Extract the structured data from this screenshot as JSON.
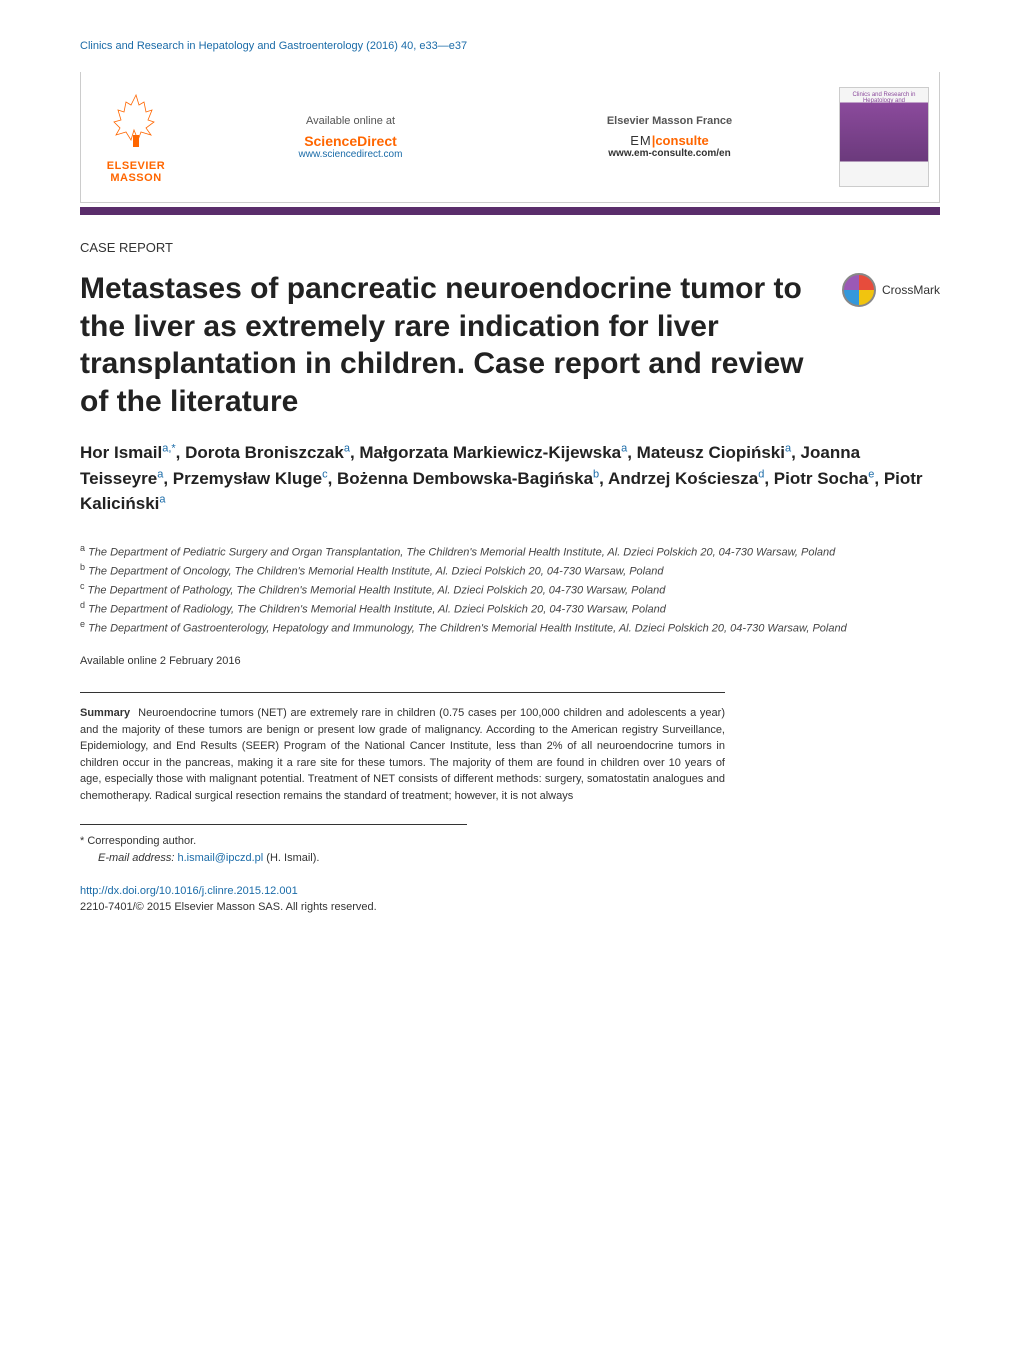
{
  "journal_header": "Clinics and Research in Hepatology and Gastroenterology (2016) 40, e33—e37",
  "banner": {
    "elsevier_name": "ELSEVIER",
    "elsevier_sub": "MASSON",
    "col1_label": "Available online at",
    "col1_brand": "ScienceDirect",
    "col1_url": "www.sciencedirect.com",
    "col2_label": "Elsevier Masson France",
    "col2_em_prefix": "EM",
    "col2_em_brand": "consulte",
    "col2_url": "www.em-consulte.com/en",
    "thumb_title": "Clinics and Research in Hepatology and Gastroenterology"
  },
  "section_label": "CASE REPORT",
  "title": "Metastases of pancreatic neuroendocrine tumor to the liver as extremely rare indication for liver transplantation in children. Case report and review of the literature",
  "crossmark": "CrossMark",
  "authors_html": "Hor Ismail<sup class='sup'>a,*</sup>, Dorota Broniszczak<sup class='sup'>a</sup>, Małgorzata Markiewicz-Kijewska<sup class='sup'>a</sup>, Mateusz Ciopiński<sup class='sup'>a</sup>, Joanna Teisseyre<sup class='sup'>a</sup>, Przemysław Kluge<sup class='sup'>c</sup>, Bożenna Dembowska-Bagińska<sup class='sup'>b</sup>, Andrzej Kościesza<sup class='sup'>d</sup>, Piotr Socha<sup class='sup'>e</sup>, Piotr Kaliciński<sup class='sup'>a</sup>",
  "affiliations": [
    {
      "key": "a",
      "text": "The Department of Pediatric Surgery and Organ Transplantation, The Children's Memorial Health Institute, Al. Dzieci Polskich 20, 04-730 Warsaw, Poland"
    },
    {
      "key": "b",
      "text": "The Department of Oncology, The Children's Memorial Health Institute, Al. Dzieci Polskich 20, 04-730 Warsaw, Poland"
    },
    {
      "key": "c",
      "text": "The Department of Pathology, The Children's Memorial Health Institute, Al. Dzieci Polskich 20, 04-730 Warsaw, Poland"
    },
    {
      "key": "d",
      "text": "The Department of Radiology, The Children's Memorial Health Institute, Al. Dzieci Polskich 20, 04-730 Warsaw, Poland"
    },
    {
      "key": "e",
      "text": "The Department of Gastroenterology, Hepatology and Immunology, The Children's Memorial Health Institute, Al. Dzieci Polskich 20, 04-730 Warsaw, Poland"
    }
  ],
  "online_date": "Available online 2 February 2016",
  "summary_label": "Summary",
  "summary_text": "Neuroendocrine tumors (NET) are extremely rare in children (0.75 cases per 100,000 children and adolescents a year) and the majority of these tumors are benign or present low grade of malignancy. According to the American registry Surveillance, Epidemiology, and End Results (SEER) Program of the National Cancer Institute, less than 2% of all neuroendocrine tumors in children occur in the pancreas, making it a rare site for these tumors. The majority of them are found in children over 10 years of age, especially those with malignant potential. Treatment of NET consists of different methods: surgery, somatostatin analogues and chemotherapy. Radical surgical resection remains the standard of treatment; however, it is not always",
  "footnote": {
    "corresponding": "* Corresponding author.",
    "email_label": "E-mail address:",
    "email": "h.ismail@ipczd.pl",
    "email_name": "(H. Ismail)."
  },
  "doi": {
    "url": "http://dx.doi.org/10.1016/j.clinre.2015.12.001",
    "copyright": "2210-7401/© 2015 Elsevier Masson SAS. All rights reserved."
  },
  "colors": {
    "link": "#1a6ba8",
    "brand_orange": "#ff6600",
    "dark_bar": "#5a2d6b"
  }
}
